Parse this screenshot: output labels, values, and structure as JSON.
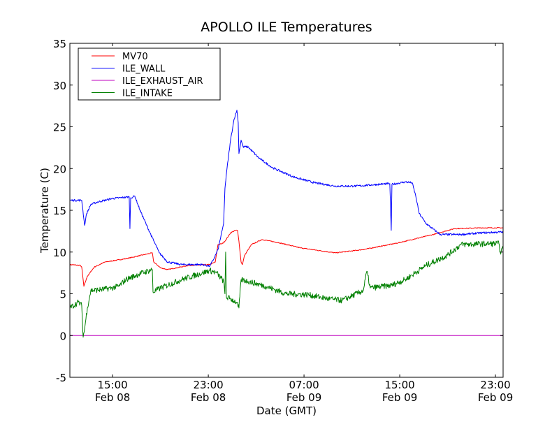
{
  "chart_data": {
    "type": "line",
    "title": "APOLLO ILE Temperatures",
    "xlabel": "Date (GMT)",
    "ylabel": "Temperature (C)",
    "x_units": "hours since Feb 08 00:00 GMT",
    "xlim": [
      11.43,
      47.64
    ],
    "ylim": [
      -5,
      35
    ],
    "grid": false,
    "legend_placement": "top-left",
    "yticks": [
      -5,
      0,
      5,
      10,
      15,
      20,
      25,
      30,
      35
    ],
    "ytick_labels": [
      "-5",
      "0",
      "5",
      "10",
      "15",
      "20",
      "25",
      "30",
      "35"
    ],
    "xticks": [
      {
        "value": 15,
        "time": "15:00",
        "date": "Feb 08"
      },
      {
        "value": 23,
        "time": "23:00",
        "date": "Feb 08"
      },
      {
        "value": 31,
        "time": "07:00",
        "date": "Feb 09"
      },
      {
        "value": 39,
        "time": "15:00",
        "date": "Feb 09"
      },
      {
        "value": 47,
        "time": "23:00",
        "date": "Feb 09"
      }
    ],
    "series": [
      {
        "name": "MV70",
        "color": "#ff0000",
        "noise": 0.05,
        "points": [
          [
            11.43,
            8.5
          ],
          [
            12.31,
            8.4
          ],
          [
            12.42,
            8.2
          ],
          [
            12.6,
            5.9
          ],
          [
            12.89,
            7.1
          ],
          [
            13.47,
            8.2
          ],
          [
            14.35,
            8.8
          ],
          [
            16.1,
            9.2
          ],
          [
            18.32,
            9.9
          ],
          [
            18.44,
            8.8
          ],
          [
            19.02,
            8.1
          ],
          [
            19.61,
            7.9
          ],
          [
            21.36,
            8.4
          ],
          [
            23.11,
            8.5
          ],
          [
            23.58,
            8.8
          ],
          [
            23.81,
            10.9
          ],
          [
            24.16,
            11.0
          ],
          [
            24.39,
            11.3
          ],
          [
            24.86,
            12.3
          ],
          [
            25.27,
            12.6
          ],
          [
            25.44,
            12.6
          ],
          [
            25.56,
            11.3
          ],
          [
            25.74,
            8.8
          ],
          [
            25.85,
            8.5
          ],
          [
            26.03,
            9.6
          ],
          [
            26.61,
            10.9
          ],
          [
            27.49,
            11.5
          ],
          [
            28.95,
            11.1
          ],
          [
            30.7,
            10.5
          ],
          [
            33.62,
            9.9
          ],
          [
            35.96,
            10.3
          ],
          [
            38.87,
            11.1
          ],
          [
            41.8,
            12.1
          ],
          [
            43.55,
            12.8
          ],
          [
            45.88,
            12.9
          ],
          [
            47.64,
            12.9
          ]
        ]
      },
      {
        "name": "ILE_WALL",
        "color": "#0000ff",
        "noise": 0.12,
        "points": [
          [
            11.43,
            16.2
          ],
          [
            12.42,
            16.2
          ],
          [
            12.48,
            15.5
          ],
          [
            12.66,
            13.2
          ],
          [
            12.83,
            14.6
          ],
          [
            13.18,
            15.7
          ],
          [
            13.77,
            16.0
          ],
          [
            14.93,
            16.4
          ],
          [
            16.39,
            16.6
          ],
          [
            16.45,
            12.8
          ],
          [
            16.51,
            16.5
          ],
          [
            16.86,
            16.7
          ],
          [
            17.27,
            15.1
          ],
          [
            17.85,
            13.2
          ],
          [
            18.32,
            11.7
          ],
          [
            18.55,
            11.0
          ],
          [
            18.9,
            9.9
          ],
          [
            19.61,
            8.8
          ],
          [
            20.77,
            8.5
          ],
          [
            22.52,
            8.5
          ],
          [
            23.11,
            8.3
          ],
          [
            23.4,
            9.0
          ],
          [
            23.81,
            10.3
          ],
          [
            24.16,
            12.6
          ],
          [
            24.28,
            13.4
          ],
          [
            24.39,
            17.6
          ],
          [
            24.57,
            20.1
          ],
          [
            24.86,
            23.4
          ],
          [
            25.15,
            25.9
          ],
          [
            25.39,
            27.0
          ],
          [
            25.5,
            25.5
          ],
          [
            25.56,
            21.8
          ],
          [
            25.74,
            23.4
          ],
          [
            25.91,
            22.6
          ],
          [
            26.32,
            22.6
          ],
          [
            27.2,
            21.3
          ],
          [
            28.36,
            20.1
          ],
          [
            30.12,
            19.0
          ],
          [
            31.87,
            18.3
          ],
          [
            33.62,
            17.9
          ],
          [
            35.37,
            17.9
          ],
          [
            37.12,
            18.1
          ],
          [
            38.17,
            18.2
          ],
          [
            38.29,
            12.6
          ],
          [
            38.35,
            18.1
          ],
          [
            39.46,
            18.4
          ],
          [
            40.04,
            18.3
          ],
          [
            40.34,
            16.7
          ],
          [
            40.63,
            14.6
          ],
          [
            41.21,
            13.4
          ],
          [
            42.38,
            12.1
          ],
          [
            44.13,
            12.1
          ],
          [
            45.88,
            12.3
          ],
          [
            47.64,
            12.4
          ]
        ]
      },
      {
        "name": "ILE_EXHAUST_AIR",
        "color": "#bf00bf",
        "noise": 0,
        "points": [
          [
            11.43,
            0.0
          ],
          [
            47.64,
            0.0
          ]
        ]
      },
      {
        "name": "ILE_INTAKE",
        "color": "#008000",
        "noise": 0.35,
        "points": [
          [
            11.43,
            3.3
          ],
          [
            12.13,
            4.0
          ],
          [
            12.42,
            3.6
          ],
          [
            12.54,
            -0.2
          ],
          [
            12.66,
            0.8
          ],
          [
            12.89,
            3.3
          ],
          [
            13.18,
            5.4
          ],
          [
            14.06,
            5.5
          ],
          [
            14.93,
            5.7
          ],
          [
            15.52,
            5.9
          ],
          [
            16.1,
            6.7
          ],
          [
            17.27,
            7.4
          ],
          [
            18.32,
            7.9
          ],
          [
            18.38,
            5.2
          ],
          [
            19.02,
            5.7
          ],
          [
            20.77,
            6.7
          ],
          [
            22.52,
            7.5
          ],
          [
            23.11,
            7.8
          ],
          [
            23.69,
            7.5
          ],
          [
            24.28,
            6.5
          ],
          [
            24.39,
            5.0
          ],
          [
            24.45,
            10.0
          ],
          [
            24.51,
            4.6
          ],
          [
            24.86,
            4.4
          ],
          [
            25.33,
            4.0
          ],
          [
            25.56,
            3.3
          ],
          [
            25.74,
            6.7
          ],
          [
            26.32,
            6.5
          ],
          [
            27.78,
            5.9
          ],
          [
            29.53,
            5.0
          ],
          [
            31.28,
            4.9
          ],
          [
            33.04,
            4.4
          ],
          [
            34.2,
            4.2
          ],
          [
            35.96,
            5.4
          ],
          [
            36.25,
            7.7
          ],
          [
            36.54,
            5.7
          ],
          [
            38.29,
            6.0
          ],
          [
            39.46,
            6.7
          ],
          [
            41.21,
            8.4
          ],
          [
            42.96,
            9.6
          ],
          [
            44.13,
            10.9
          ],
          [
            46.47,
            11.0
          ],
          [
            47.29,
            11.0
          ],
          [
            47.4,
            10.0
          ],
          [
            47.64,
            10.4
          ]
        ]
      }
    ]
  }
}
